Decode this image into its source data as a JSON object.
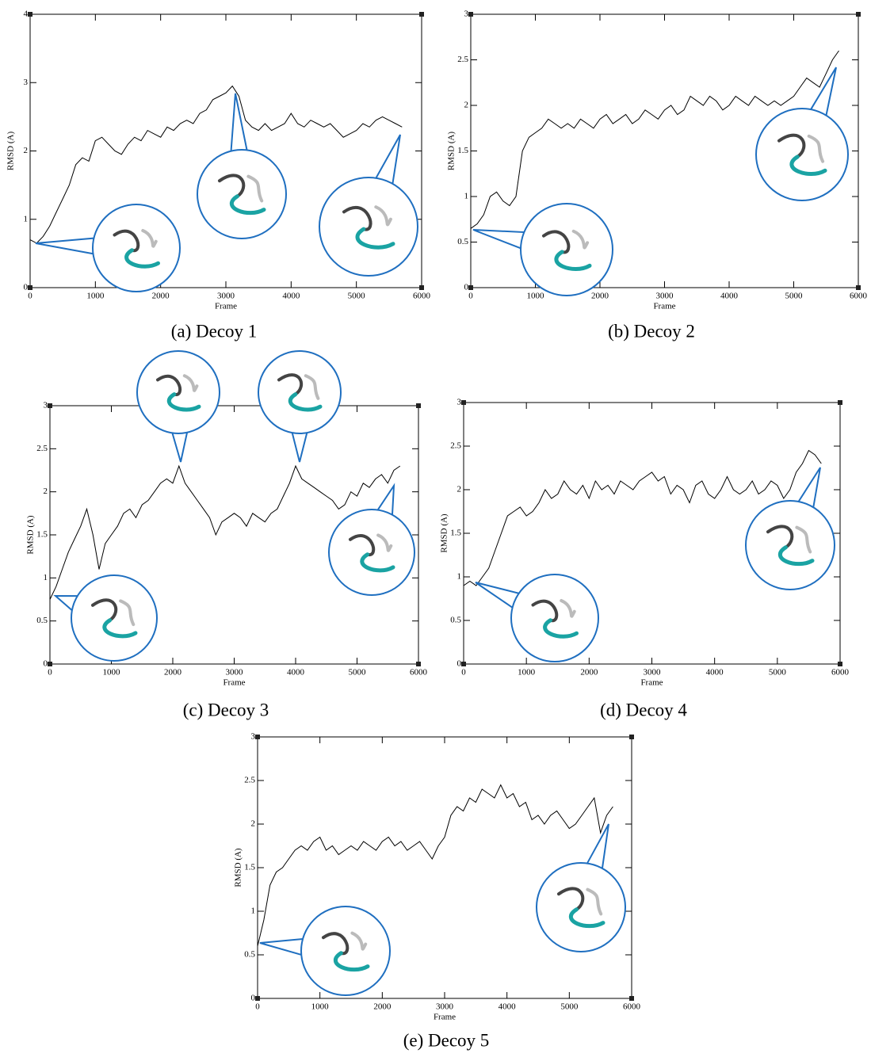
{
  "chart_data": [
    {
      "type": "line",
      "caption": "(a) Decoy 1",
      "xlabel": "Frame",
      "ylabel": "RMSD (A)",
      "x": [
        0,
        100,
        200,
        300,
        400,
        500,
        600,
        700,
        800,
        900,
        1000,
        1100,
        1200,
        1300,
        1400,
        1500,
        1600,
        1700,
        1800,
        1900,
        2000,
        2100,
        2200,
        2300,
        2400,
        2500,
        2600,
        2700,
        2800,
        2900,
        3000,
        3100,
        3200,
        3300,
        3400,
        3500,
        3600,
        3700,
        3800,
        3900,
        4000,
        4100,
        4200,
        4300,
        4400,
        4500,
        4600,
        4700,
        4800,
        4900,
        5000,
        5100,
        5200,
        5300,
        5400,
        5500,
        5600,
        5700
      ],
      "values": [
        0.7,
        0.65,
        0.75,
        0.9,
        1.1,
        1.3,
        1.5,
        1.8,
        1.9,
        1.85,
        2.15,
        2.2,
        2.1,
        2.0,
        1.95,
        2.1,
        2.2,
        2.15,
        2.3,
        2.25,
        2.2,
        2.35,
        2.3,
        2.4,
        2.45,
        2.4,
        2.55,
        2.6,
        2.75,
        2.8,
        2.85,
        2.95,
        2.8,
        2.45,
        2.35,
        2.3,
        2.4,
        2.3,
        2.35,
        2.4,
        2.55,
        2.4,
        2.35,
        2.45,
        2.4,
        2.35,
        2.4,
        2.3,
        2.2,
        2.25,
        2.3,
        2.4,
        2.35,
        2.45,
        2.5,
        2.45,
        2.4,
        2.35
      ],
      "color": "#000000",
      "xlim": [
        0,
        6000
      ],
      "xticks": [
        0,
        1000,
        2000,
        3000,
        4000,
        5000,
        6000
      ],
      "ylim": [
        0,
        4
      ],
      "yticks": [
        0,
        1,
        2,
        3,
        4
      ]
    },
    {
      "type": "line",
      "caption": "(b) Decoy 2",
      "xlabel": "Frame",
      "ylabel": "RMSD (A)",
      "x": [
        0,
        100,
        200,
        300,
        400,
        500,
        600,
        700,
        800,
        900,
        1000,
        1100,
        1200,
        1300,
        1400,
        1500,
        1600,
        1700,
        1800,
        1900,
        2000,
        2100,
        2200,
        2300,
        2400,
        2500,
        2600,
        2700,
        2800,
        2900,
        3000,
        3100,
        3200,
        3300,
        3400,
        3500,
        3600,
        3700,
        3800,
        3900,
        4000,
        4100,
        4200,
        4300,
        4400,
        4500,
        4600,
        4700,
        4800,
        4900,
        5000,
        5100,
        5200,
        5300,
        5400,
        5500,
        5600,
        5700
      ],
      "values": [
        0.65,
        0.7,
        0.8,
        1.0,
        1.05,
        0.95,
        0.9,
        1.0,
        1.5,
        1.65,
        1.7,
        1.75,
        1.85,
        1.8,
        1.75,
        1.8,
        1.75,
        1.85,
        1.8,
        1.75,
        1.85,
        1.9,
        1.8,
        1.85,
        1.9,
        1.8,
        1.85,
        1.95,
        1.9,
        1.85,
        1.95,
        2.0,
        1.9,
        1.95,
        2.1,
        2.05,
        2.0,
        2.1,
        2.05,
        1.95,
        2.0,
        2.1,
        2.05,
        2.0,
        2.1,
        2.05,
        2.0,
        2.05,
        2.0,
        2.05,
        2.1,
        2.2,
        2.3,
        2.25,
        2.2,
        2.35,
        2.5,
        2.6
      ],
      "color": "#000000",
      "xlim": [
        0,
        6000
      ],
      "xticks": [
        0,
        1000,
        2000,
        3000,
        4000,
        5000,
        6000
      ],
      "ylim": [
        0,
        3
      ],
      "yticks": [
        0,
        0.5,
        1,
        1.5,
        2,
        2.5,
        3
      ]
    },
    {
      "type": "line",
      "caption": "(c) Decoy 3",
      "xlabel": "Frame",
      "ylabel": "RMSD (A)",
      "x": [
        0,
        100,
        200,
        300,
        400,
        500,
        600,
        700,
        800,
        900,
        1000,
        1100,
        1200,
        1300,
        1400,
        1500,
        1600,
        1700,
        1800,
        1900,
        2000,
        2100,
        2200,
        2300,
        2400,
        2500,
        2600,
        2700,
        2800,
        2900,
        3000,
        3100,
        3200,
        3300,
        3400,
        3500,
        3600,
        3700,
        3800,
        3900,
        4000,
        4100,
        4200,
        4300,
        4400,
        4500,
        4600,
        4700,
        4800,
        4900,
        5000,
        5100,
        5200,
        5300,
        5400,
        5500,
        5600,
        5700
      ],
      "values": [
        0.75,
        0.9,
        1.1,
        1.3,
        1.45,
        1.6,
        1.8,
        1.5,
        1.1,
        1.4,
        1.5,
        1.6,
        1.75,
        1.8,
        1.7,
        1.85,
        1.9,
        2.0,
        2.1,
        2.15,
        2.1,
        2.3,
        2.1,
        2.0,
        1.9,
        1.8,
        1.7,
        1.5,
        1.65,
        1.7,
        1.75,
        1.7,
        1.6,
        1.75,
        1.7,
        1.65,
        1.75,
        1.8,
        1.95,
        2.1,
        2.3,
        2.15,
        2.1,
        2.05,
        2.0,
        1.95,
        1.9,
        1.8,
        1.85,
        2.0,
        1.95,
        2.1,
        2.05,
        2.15,
        2.2,
        2.1,
        2.25,
        2.3
      ],
      "color": "#000000",
      "xlim": [
        0,
        6000
      ],
      "xticks": [
        0,
        1000,
        2000,
        3000,
        4000,
        5000,
        6000
      ],
      "ylim": [
        0,
        3
      ],
      "yticks": [
        0,
        0.5,
        1,
        1.5,
        2,
        2.5,
        3
      ]
    },
    {
      "type": "line",
      "caption": "(d) Decoy 4",
      "xlabel": "Frame",
      "ylabel": "RMSD (A)",
      "x": [
        0,
        100,
        200,
        300,
        400,
        500,
        600,
        700,
        800,
        900,
        1000,
        1100,
        1200,
        1300,
        1400,
        1500,
        1600,
        1700,
        1800,
        1900,
        2000,
        2100,
        2200,
        2300,
        2400,
        2500,
        2600,
        2700,
        2800,
        2900,
        3000,
        3100,
        3200,
        3300,
        3400,
        3500,
        3600,
        3700,
        3800,
        3900,
        4000,
        4100,
        4200,
        4300,
        4400,
        4500,
        4600,
        4700,
        4800,
        4900,
        5000,
        5100,
        5200,
        5300,
        5400,
        5500,
        5600,
        5700
      ],
      "values": [
        0.9,
        0.95,
        0.9,
        1.0,
        1.1,
        1.3,
        1.5,
        1.7,
        1.75,
        1.8,
        1.7,
        1.75,
        1.85,
        2.0,
        1.9,
        1.95,
        2.1,
        2.0,
        1.95,
        2.05,
        1.9,
        2.1,
        2.0,
        2.05,
        1.95,
        2.1,
        2.05,
        2.0,
        2.1,
        2.15,
        2.2,
        2.1,
        2.15,
        1.95,
        2.05,
        2.0,
        1.85,
        2.05,
        2.1,
        1.95,
        1.9,
        2.0,
        2.15,
        2.0,
        1.95,
        2.0,
        2.1,
        1.95,
        2.0,
        2.1,
        2.05,
        1.9,
        2.0,
        2.2,
        2.3,
        2.45,
        2.4,
        2.3
      ],
      "color": "#000000",
      "xlim": [
        0,
        6000
      ],
      "xticks": [
        0,
        1000,
        2000,
        3000,
        4000,
        5000,
        6000
      ],
      "ylim": [
        0,
        3
      ],
      "yticks": [
        0,
        0.5,
        1,
        1.5,
        2,
        2.5,
        3
      ]
    },
    {
      "type": "line",
      "caption": "(e) Decoy 5",
      "xlabel": "Frame",
      "ylabel": "RMSD (A)",
      "x": [
        0,
        100,
        200,
        300,
        400,
        500,
        600,
        700,
        800,
        900,
        1000,
        1100,
        1200,
        1300,
        1400,
        1500,
        1600,
        1700,
        1800,
        1900,
        2000,
        2100,
        2200,
        2300,
        2400,
        2500,
        2600,
        2700,
        2800,
        2900,
        3000,
        3100,
        3200,
        3300,
        3400,
        3500,
        3600,
        3700,
        3800,
        3900,
        4000,
        4100,
        4200,
        4300,
        4400,
        4500,
        4600,
        4700,
        4800,
        4900,
        5000,
        5100,
        5200,
        5300,
        5400,
        5500,
        5600,
        5700
      ],
      "values": [
        0.6,
        0.9,
        1.3,
        1.45,
        1.5,
        1.6,
        1.7,
        1.75,
        1.7,
        1.8,
        1.85,
        1.7,
        1.75,
        1.65,
        1.7,
        1.75,
        1.7,
        1.8,
        1.75,
        1.7,
        1.8,
        1.85,
        1.75,
        1.8,
        1.7,
        1.75,
        1.8,
        1.7,
        1.6,
        1.75,
        1.85,
        2.1,
        2.2,
        2.15,
        2.3,
        2.25,
        2.4,
        2.35,
        2.3,
        2.45,
        2.3,
        2.35,
        2.2,
        2.25,
        2.05,
        2.1,
        2.0,
        2.1,
        2.15,
        2.05,
        1.95,
        2.0,
        2.1,
        2.2,
        2.3,
        1.9,
        2.1,
        2.2
      ],
      "color": "#000000",
      "xlim": [
        0,
        6000
      ],
      "xticks": [
        0,
        1000,
        2000,
        3000,
        4000,
        5000,
        6000
      ],
      "ylim": [
        0,
        3
      ],
      "yticks": [
        0,
        0.5,
        1,
        1.5,
        2,
        2.5,
        3
      ]
    }
  ]
}
